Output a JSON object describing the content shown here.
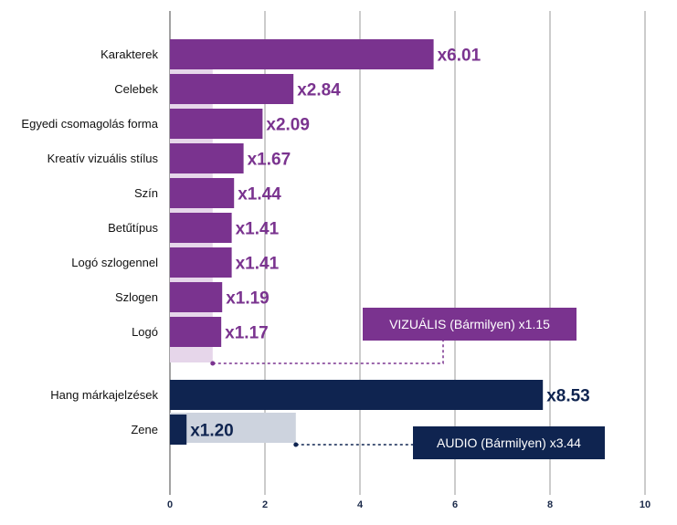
{
  "chart_data": {
    "type": "bar",
    "orientation": "horizontal",
    "xlim": [
      0,
      10
    ],
    "xticks": [
      "0",
      "2",
      "4",
      "6",
      "8",
      "10"
    ],
    "grid": "vertical",
    "colors": {
      "visual": "#7a338f",
      "visual_light": "#e6d6ea",
      "audio": "#0f2450",
      "audio_light": "#cdd3de"
    },
    "groups": [
      {
        "group": "visual",
        "bars": [
          {
            "category": "Karakterek",
            "value": 5.55,
            "label": "x6.01"
          },
          {
            "category": "Celebek",
            "value": 2.6,
            "label": "x2.84"
          },
          {
            "category": "Egyedi csomagolás forma",
            "value": 1.95,
            "label": "x2.09"
          },
          {
            "category": "Kreatív vizuális stílus",
            "value": 1.55,
            "label": "x1.67"
          },
          {
            "category": "Szín",
            "value": 1.35,
            "label": "x1.44"
          },
          {
            "category": "Betűtípus",
            "value": 1.3,
            "label": "x1.41"
          },
          {
            "category": "Logó szlogennel",
            "value": 1.3,
            "label": "x1.41"
          },
          {
            "category": "Szlogen",
            "value": 1.1,
            "label": "x1.19"
          },
          {
            "category": "Logó",
            "value": 1.08,
            "label": "x1.17"
          }
        ],
        "baseline": {
          "value": 0.9,
          "label": "VIZUÁLIS (Bármilyen) x1.15"
        }
      },
      {
        "group": "audio",
        "bars": [
          {
            "category": "Hang márkajelzések",
            "value": 7.85,
            "label": "x8.53"
          },
          {
            "category": "Zene",
            "value": 0.35,
            "label": "x1.20"
          }
        ],
        "baseline": {
          "value": 2.65,
          "label": "AUDIO (Bármilyen) x3.44"
        }
      }
    ]
  }
}
